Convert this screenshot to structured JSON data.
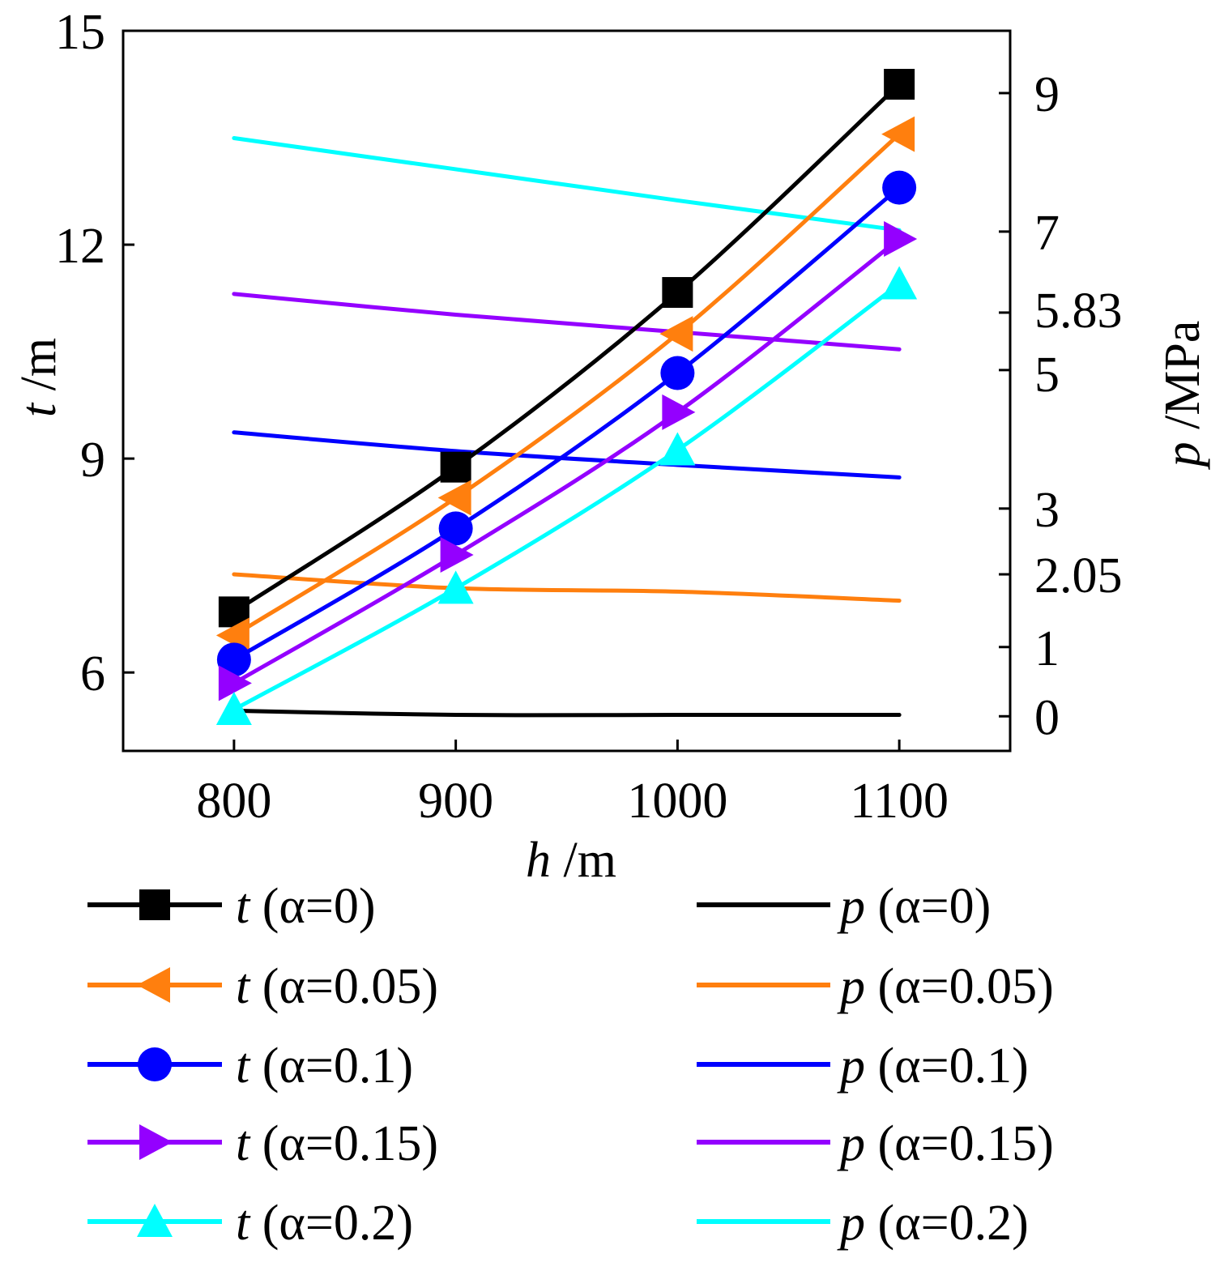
{
  "chart_data": {
    "type": "line",
    "x": [
      800,
      900,
      1000,
      1100
    ],
    "xlabel": {
      "var": "h",
      "unit": " /m"
    },
    "ylabel_left": {
      "var": "t",
      "unit": " /m"
    },
    "ylabel_right": {
      "var": "p",
      "unit": " /MPa"
    },
    "xlim": [
      750,
      1150
    ],
    "ylim_left": [
      4.9,
      15
    ],
    "ylim_right": [
      -0.5,
      9.9
    ],
    "x_ticks": [
      "800",
      "900",
      "1000",
      "1100"
    ],
    "y_left_ticks": [
      "6",
      "9",
      "12",
      "15"
    ],
    "y_right_ticks": [
      "0",
      "1",
      "2.05",
      "3",
      "5",
      "5.83",
      "7",
      "9"
    ],
    "t_series": [
      {
        "name": "t (α=0)",
        "color": "#000000",
        "marker": "square",
        "values": [
          6.85,
          8.88,
          11.33,
          14.25
        ]
      },
      {
        "name": "t (α=0.05)",
        "color": "#ff7f0e",
        "marker": "triangle-left",
        "values": [
          6.52,
          8.45,
          10.75,
          13.55
        ]
      },
      {
        "name": "t (α=0.1)",
        "color": "#0000ff",
        "marker": "circle",
        "values": [
          6.18,
          8.02,
          10.2,
          12.8
        ]
      },
      {
        "name": "t (α=0.15)",
        "color": "#9400ff",
        "marker": "triangle-right",
        "values": [
          5.85,
          7.65,
          9.65,
          12.08
        ]
      },
      {
        "name": "t (α=0.2)",
        "color": "#00ffff",
        "marker": "triangle-up",
        "values": [
          5.48,
          7.18,
          9.12,
          11.45
        ]
      }
    ],
    "p_series": [
      {
        "name": "p (α=0)",
        "color": "#000000",
        "values": [
          0.08,
          0.02,
          0.02,
          0.02
        ]
      },
      {
        "name": "p (α=0.05)",
        "color": "#ff7f0e",
        "values": [
          2.05,
          1.85,
          1.8,
          1.67
        ]
      },
      {
        "name": "p (α=0.1)",
        "color": "#0000ff",
        "values": [
          4.1,
          3.83,
          3.63,
          3.45
        ]
      },
      {
        "name": "p (α=0.15)",
        "color": "#9400ff",
        "values": [
          6.1,
          5.8,
          5.55,
          5.3
        ]
      },
      {
        "name": "p (α=0.2)",
        "color": "#00ffff",
        "values": [
          8.35,
          7.9,
          7.45,
          7.02
        ]
      }
    ],
    "legend": {
      "left": [
        {
          "var": "t",
          "label": " (α=0)"
        },
        {
          "var": "t",
          "label": " (α=0.05)"
        },
        {
          "var": "t",
          "label": " (α=0.1)"
        },
        {
          "var": "t",
          "label": " (α=0.15)"
        },
        {
          "var": "t",
          "label": " (α=0.2)"
        }
      ],
      "right": [
        {
          "var": "p",
          "label": " (α=0)"
        },
        {
          "var": "p",
          "label": " (α=0.05)"
        },
        {
          "var": "p",
          "label": " (α=0.1)"
        },
        {
          "var": "p",
          "label": " (α=0.15)"
        },
        {
          "var": "p",
          "label": " (α=0.2)"
        }
      ]
    }
  }
}
